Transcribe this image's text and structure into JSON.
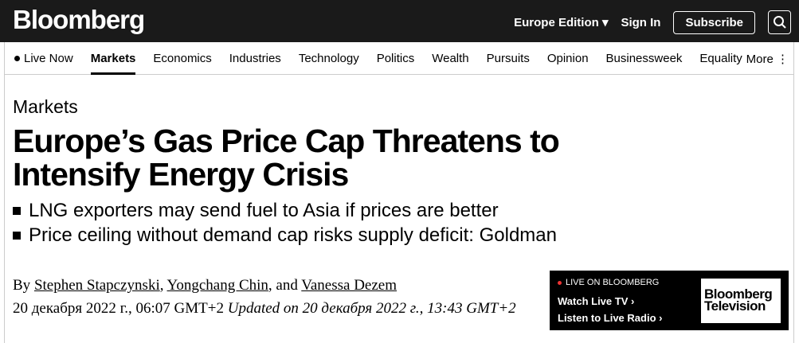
{
  "header": {
    "logo": "Bloomberg",
    "edition": "Europe Edition ▾",
    "sign_in": "Sign In",
    "subscribe": "Subscribe"
  },
  "nav": {
    "items": [
      "Live Now",
      "Markets",
      "Economics",
      "Industries",
      "Technology",
      "Politics",
      "Wealth",
      "Pursuits",
      "Opinion",
      "Businessweek",
      "Equality"
    ],
    "more": "More ⋮",
    "active": "Markets"
  },
  "article": {
    "kicker": "Markets",
    "title": "Europe’s Gas Price Cap Threatens to Intensify Energy Crisis",
    "bullets": [
      "LNG exporters may send fuel to Asia if prices are better",
      "Price ceiling without demand cap risks supply deficit: Goldman"
    ],
    "by": "By ",
    "authors": [
      "Stephen Stapczynski",
      "Yongchang Chin",
      "Vanessa Dezem"
    ],
    "sep1": ", ",
    "sep2": ", and ",
    "date": "20 декабря 2022 г., 06:07 GMT+2 ",
    "updated": "Updated on 20 декабря 2022 г., 13:43 GMT+2"
  },
  "live": {
    "label": "LIVE ON BLOOMBERG",
    "watch": "Watch Live TV  ›",
    "listen": "Listen to Live Radio  ›",
    "logo": "Bloomberg Television"
  }
}
